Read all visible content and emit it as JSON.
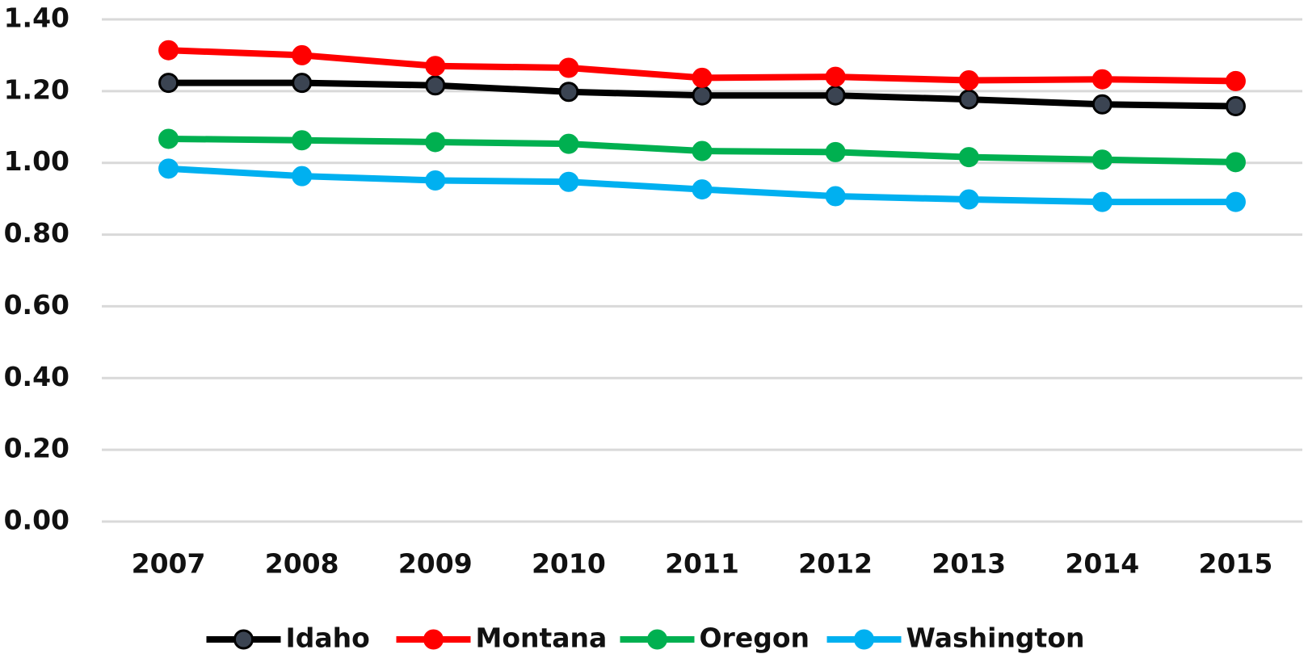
{
  "chart_data": {
    "type": "line",
    "x": [
      "2007",
      "2008",
      "2009",
      "2010",
      "2011",
      "2012",
      "2013",
      "2014",
      "2015"
    ],
    "series": [
      {
        "name": "Idaho",
        "color": "#000000",
        "marker_fill": "#3b4452",
        "values": [
          1.223,
          1.223,
          1.216,
          1.198,
          1.188,
          1.188,
          1.177,
          1.163,
          1.158
        ]
      },
      {
        "name": "Montana",
        "color": "#ff0000",
        "values": [
          1.314,
          1.3,
          1.27,
          1.265,
          1.237,
          1.24,
          1.23,
          1.233,
          1.228
        ]
      },
      {
        "name": "Oregon",
        "color": "#00b050",
        "values": [
          1.067,
          1.063,
          1.058,
          1.053,
          1.033,
          1.03,
          1.016,
          1.009,
          1.002
        ]
      },
      {
        "name": "Washington",
        "color": "#00b0f0",
        "values": [
          0.984,
          0.963,
          0.951,
          0.947,
          0.926,
          0.907,
          0.898,
          0.891,
          0.891
        ]
      }
    ],
    "ylim": [
      0,
      1.4
    ],
    "yticks": [
      {
        "value": 0,
        "label": "0.00"
      },
      {
        "value": 0.2,
        "label": "0.20"
      },
      {
        "value": 0.4,
        "label": "0.40"
      },
      {
        "value": 0.6,
        "label": "0.60"
      },
      {
        "value": 0.8,
        "label": "0.80"
      },
      {
        "value": 1.0,
        "label": "1.00"
      },
      {
        "value": 1.2,
        "label": "1.20"
      },
      {
        "value": 1.4,
        "label": "1.40"
      }
    ],
    "grid": true,
    "legend": "bottom"
  }
}
